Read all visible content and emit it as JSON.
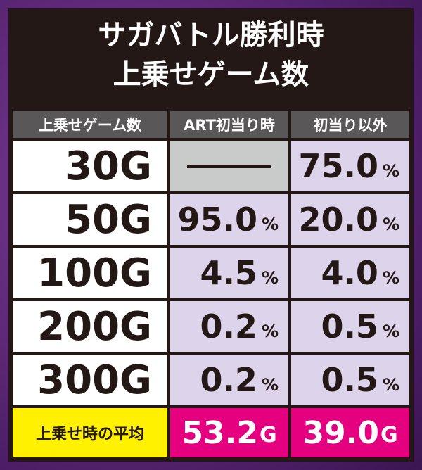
{
  "title": {
    "lines": [
      "サガバトル勝利時",
      "上乗せゲーム数"
    ]
  },
  "table": {
    "header": [
      "上乗せゲーム数",
      "ART初当り時",
      "初当り以外"
    ],
    "rows": [
      {
        "label": "30G",
        "art": null,
        "other": {
          "number": "75.0",
          "unit": "%"
        }
      },
      {
        "label": "50G",
        "art": {
          "number": "95.0",
          "unit": "%"
        },
        "other": {
          "number": "20.0",
          "unit": "%"
        }
      },
      {
        "label": "100G",
        "art": {
          "number": "4.5",
          "unit": "%"
        },
        "other": {
          "number": "4.0",
          "unit": "%"
        }
      },
      {
        "label": "200G",
        "art": {
          "number": "0.2",
          "unit": "%"
        },
        "other": {
          "number": "0.5",
          "unit": "%"
        }
      },
      {
        "label": "300G",
        "art": {
          "number": "0.2",
          "unit": "%"
        },
        "other": {
          "number": "0.5",
          "unit": "%"
        }
      }
    ],
    "footer": {
      "label": "上乗せ時の平均",
      "art": {
        "number": "53.2",
        "unit": "G"
      },
      "other": {
        "number": "39.0",
        "unit": "G"
      }
    }
  }
}
